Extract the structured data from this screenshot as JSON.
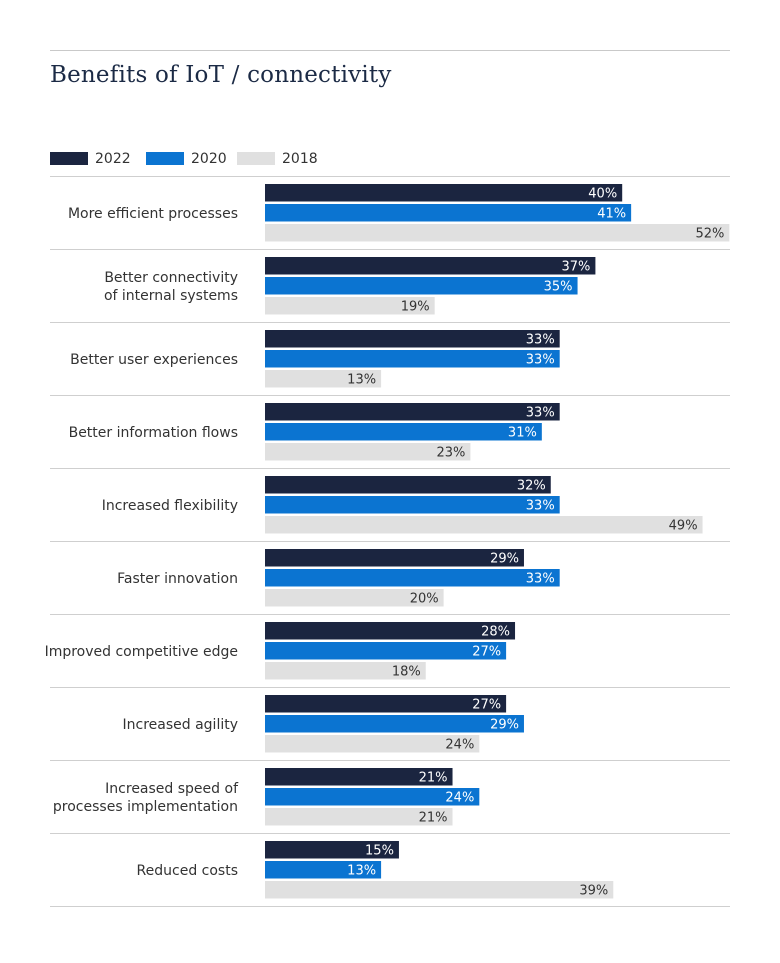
{
  "title": "Benefits of IoT / connectivity",
  "colors": {
    "2022": "#1b2540",
    "2020": "#0b74d1",
    "2018": "#e0e0e0",
    "text": "#333333",
    "rule": "#cfcfcf"
  },
  "legend": [
    {
      "label": "2022",
      "color": "#1b2540"
    },
    {
      "label": "2020",
      "color": "#0b74d1"
    },
    {
      "label": "2018",
      "color": "#e0e0e0"
    }
  ],
  "chart_data": {
    "type": "bar",
    "orientation": "horizontal",
    "title": "Benefits of IoT / connectivity",
    "legend_position": "top-left",
    "grid": false,
    "value_format": "percent",
    "categories": [
      [
        "More efficient processes"
      ],
      [
        "Better connectivity",
        "of internal systems"
      ],
      [
        "Better user experiences"
      ],
      [
        "Better information flows"
      ],
      [
        "Increased flexibility"
      ],
      [
        "Faster innovation"
      ],
      [
        "Improved competitive edge"
      ],
      [
        "Increased agility"
      ],
      [
        "Increased speed of",
        "processes implementation"
      ],
      [
        "Reduced costs"
      ]
    ],
    "series": [
      {
        "name": "2022",
        "color": "#1b2540",
        "label_color": "#ffffff",
        "values": [
          40,
          37,
          33,
          33,
          32,
          29,
          28,
          27,
          21,
          15
        ]
      },
      {
        "name": "2020",
        "color": "#0b74d1",
        "label_color": "#ffffff",
        "values": [
          41,
          35,
          33,
          31,
          33,
          33,
          27,
          29,
          24,
          13
        ]
      },
      {
        "name": "2018",
        "color": "#e0e0e0",
        "label_color": "#333333",
        "values": [
          52,
          19,
          13,
          23,
          49,
          20,
          18,
          24,
          21,
          39
        ]
      }
    ],
    "xlim": [
      0,
      100
    ]
  }
}
